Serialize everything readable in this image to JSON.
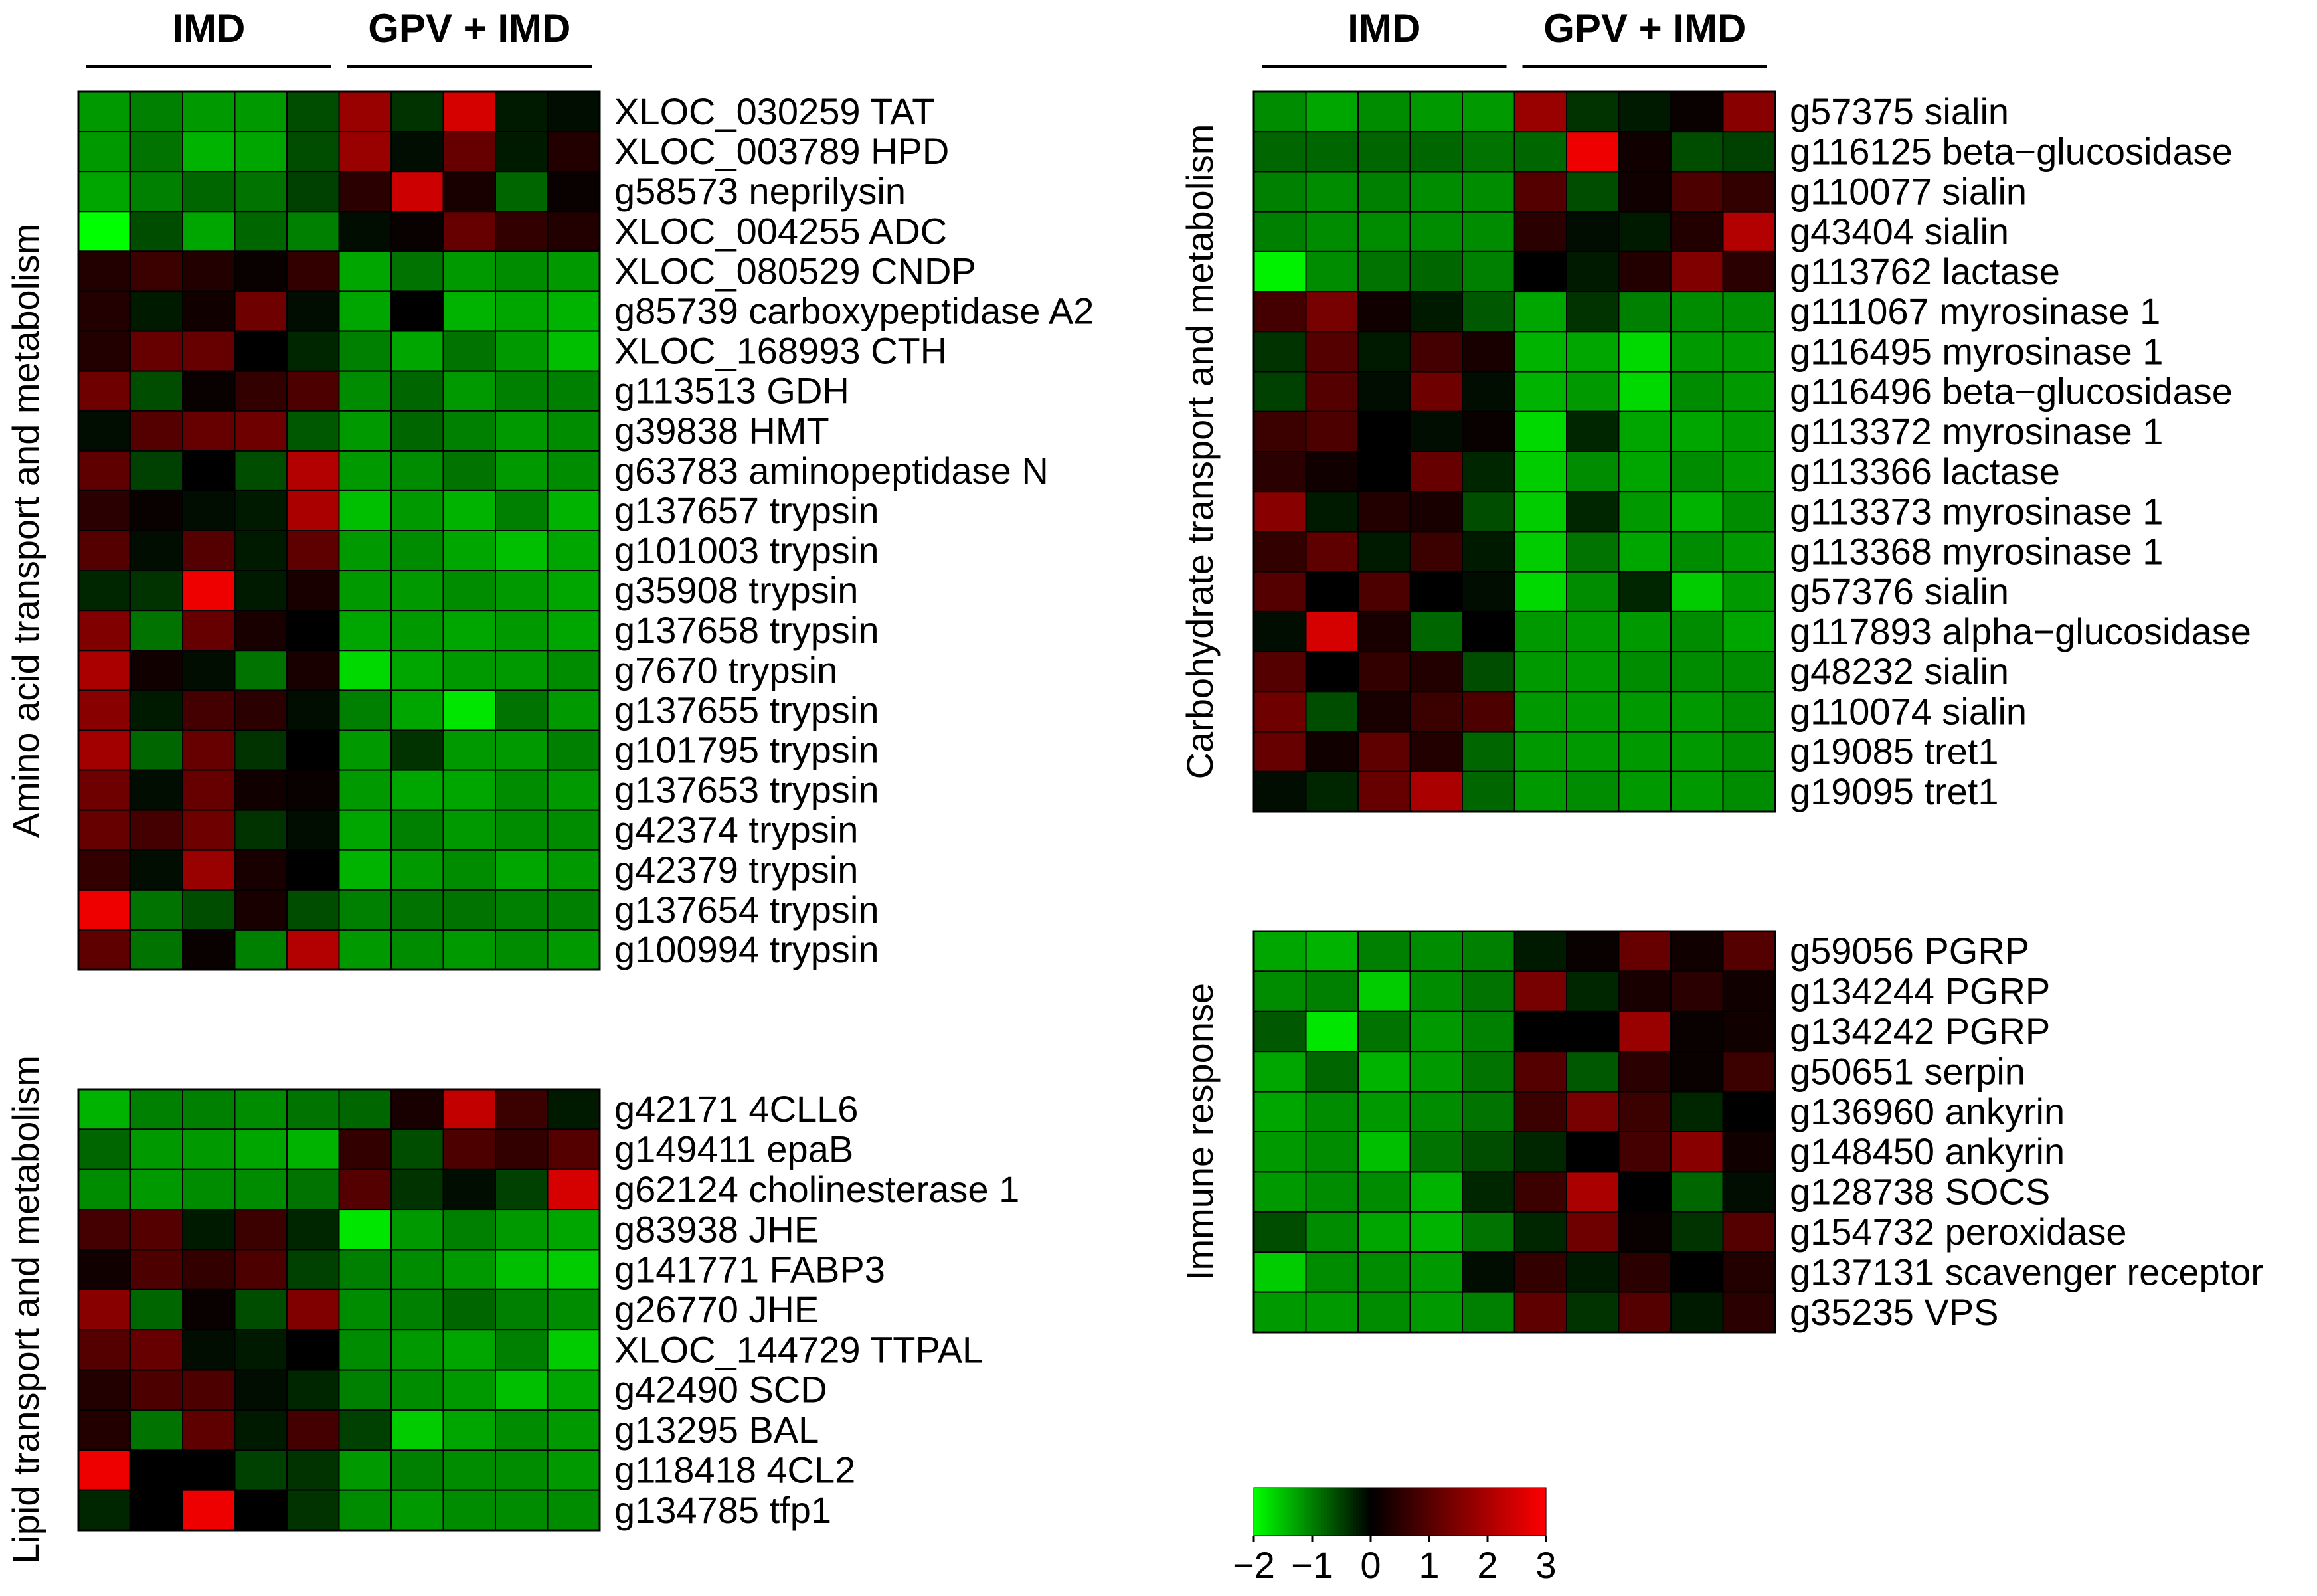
{
  "scale": {
    "min": -2,
    "max": 3
  },
  "colors": {
    "low": "#00ff00",
    "mid": "#000000",
    "high": "#ff0000"
  },
  "legend": {
    "ticks": [
      "−2",
      "−1",
      "0",
      "1",
      "2",
      "3"
    ]
  },
  "chart_data": [
    {
      "type": "heatmap",
      "title": "Amino acid transport and metabolism",
      "groups": [
        "IMD",
        "GPV + IMD"
      ],
      "rows": [
        "XLOC_030259 TAT",
        "XLOC_003789 HPD",
        "g58573 neprilysin",
        "XLOC_004255 ADC",
        "XLOC_080529 CNDP",
        "g85739 carboxypeptidase A2",
        "XLOC_168993 CTH",
        "g113513 GDH",
        "g39838 HMT",
        "g63783 aminopeptidase N",
        "g137657 trypsin",
        "g101003 trypsin",
        "g35908 trypsin",
        "g137658 trypsin",
        "g7670 trypsin",
        "g137655 trypsin",
        "g101795 trypsin",
        "g137653 trypsin",
        "g42374 trypsin",
        "g42379 trypsin",
        "g137654 trypsin",
        "g100994 trypsin"
      ],
      "values": [
        [
          -1.2,
          -1.0,
          -1.2,
          -1.2,
          -0.6,
          1.8,
          -0.4,
          2.5,
          -0.2,
          -0.1
        ],
        [
          -1.2,
          -0.9,
          -1.4,
          -1.3,
          -0.6,
          1.8,
          -0.1,
          1.2,
          -0.2,
          0.4
        ],
        [
          -1.3,
          -1.0,
          -0.8,
          -0.9,
          -0.5,
          0.5,
          2.4,
          0.3,
          -0.8,
          0.1
        ],
        [
          -2.0,
          -0.6,
          -1.3,
          -0.8,
          -1.0,
          -0.1,
          0.1,
          1.2,
          0.6,
          0.4
        ],
        [
          0.4,
          0.7,
          0.4,
          0.1,
          0.6,
          -1.3,
          -0.9,
          -1.2,
          -1.1,
          -1.2
        ],
        [
          0.4,
          -0.2,
          0.2,
          1.3,
          -0.1,
          -1.3,
          0.0,
          -1.4,
          -1.3,
          -1.4
        ],
        [
          0.4,
          1.2,
          1.2,
          0.0,
          -0.3,
          -1.0,
          -1.3,
          -0.9,
          -1.2,
          -1.5
        ],
        [
          1.3,
          -0.6,
          0.1,
          0.6,
          0.9,
          -1.1,
          -0.8,
          -1.2,
          -1.0,
          -1.0
        ],
        [
          -0.1,
          1.0,
          1.2,
          1.3,
          -0.7,
          -1.2,
          -0.8,
          -1.0,
          -1.2,
          -1.1
        ],
        [
          1.1,
          -0.5,
          0.0,
          -0.6,
          2.1,
          -1.2,
          -1.1,
          -0.9,
          -1.2,
          -1.1
        ],
        [
          0.5,
          0.1,
          -0.1,
          -0.2,
          2.0,
          -1.5,
          -1.2,
          -1.4,
          -1.0,
          -1.4
        ],
        [
          1.0,
          -0.1,
          1.0,
          -0.2,
          1.1,
          -1.2,
          -1.1,
          -1.3,
          -1.5,
          -1.3
        ],
        [
          -0.3,
          -0.4,
          2.8,
          -0.2,
          0.3,
          -1.2,
          -1.2,
          -1.1,
          -1.2,
          -1.3
        ],
        [
          1.5,
          -0.9,
          1.2,
          0.3,
          0.0,
          -1.3,
          -1.2,
          -1.3,
          -1.2,
          -1.3
        ],
        [
          2.0,
          0.2,
          -0.1,
          -0.9,
          0.3,
          -1.7,
          -1.3,
          -1.2,
          -1.2,
          -1.1
        ],
        [
          1.6,
          -0.2,
          0.8,
          0.5,
          -0.1,
          -1.0,
          -1.3,
          -1.8,
          -0.9,
          -1.2
        ],
        [
          1.9,
          -0.8,
          1.2,
          -0.4,
          0.0,
          -1.2,
          -0.4,
          -1.2,
          -1.2,
          -1.0
        ],
        [
          1.3,
          -0.1,
          1.2,
          0.2,
          0.1,
          -1.2,
          -1.3,
          -1.3,
          -1.1,
          -1.2
        ],
        [
          1.2,
          0.8,
          1.3,
          -0.4,
          -0.1,
          -1.3,
          -1.0,
          -1.2,
          -1.1,
          -1.1
        ],
        [
          0.6,
          -0.1,
          1.8,
          0.3,
          0.0,
          -1.4,
          -1.2,
          -1.1,
          -1.3,
          -1.2
        ],
        [
          2.8,
          -0.9,
          -0.6,
          0.3,
          -0.6,
          -1.0,
          -0.9,
          -0.9,
          -1.0,
          -1.0
        ],
        [
          1.1,
          -0.9,
          0.1,
          -1.0,
          2.1,
          -1.2,
          -1.1,
          -1.2,
          -1.1,
          -1.2
        ]
      ]
    },
    {
      "type": "heatmap",
      "title": "Lipid transport and metabolism",
      "groups": [
        "IMD",
        "GPV + IMD"
      ],
      "rows": [
        "g42171 4CLL6",
        "g149411 epaB",
        "g62124 cholinesterase 1",
        "g83938 JHE",
        "g141771 FABP3",
        "g26770 JHE",
        "XLOC_144729 TTPAL",
        "g42490 SCD",
        "g13295 BAL",
        "g118418 4CL2",
        "g134785 tfp1"
      ],
      "values": [
        [
          -1.4,
          -1.0,
          -1.0,
          -1.1,
          -0.9,
          -0.8,
          0.3,
          2.3,
          0.7,
          -0.2
        ],
        [
          -0.8,
          -1.2,
          -1.2,
          -1.3,
          -1.4,
          0.6,
          -0.6,
          0.9,
          0.6,
          1.0
        ],
        [
          -1.1,
          -1.2,
          -1.1,
          -1.1,
          -0.9,
          1.0,
          -0.4,
          -0.1,
          -0.5,
          2.5
        ],
        [
          0.8,
          1.0,
          -0.2,
          0.7,
          -0.3,
          -1.8,
          -1.2,
          -1.0,
          -1.2,
          -1.3
        ],
        [
          0.2,
          0.9,
          0.6,
          0.9,
          -0.5,
          -1.0,
          -1.1,
          -1.2,
          -1.5,
          -1.6
        ],
        [
          1.6,
          -0.8,
          0.1,
          -0.6,
          1.5,
          -1.1,
          -1.0,
          -0.8,
          -1.0,
          -1.1
        ],
        [
          1.0,
          1.2,
          -0.1,
          -0.2,
          0.0,
          -1.1,
          -1.2,
          -1.3,
          -1.0,
          -1.6
        ],
        [
          0.4,
          0.9,
          0.9,
          -0.1,
          -0.3,
          -1.0,
          -1.1,
          -1.2,
          -1.5,
          -1.3
        ],
        [
          0.4,
          -0.9,
          1.1,
          -0.2,
          0.8,
          -0.5,
          -1.6,
          -1.3,
          -1.1,
          -1.2
        ],
        [
          2.8,
          0.0,
          0.0,
          -0.5,
          -0.4,
          -1.2,
          -1.0,
          -1.1,
          -1.1,
          -1.2
        ],
        [
          -0.3,
          0.0,
          2.8,
          0.0,
          -0.4,
          -1.1,
          -1.2,
          -1.1,
          -1.1,
          -1.1
        ]
      ]
    },
    {
      "type": "heatmap",
      "title": "Carbohydrate transport and metabolism",
      "groups": [
        "IMD",
        "GPV + IMD"
      ],
      "rows": [
        "g57375 sialin",
        "g116125 beta−glucosidase",
        "g110077 sialin",
        "g43404 sialin",
        "g113762 lactase",
        "g111067 myrosinase 1",
        "g116495 myrosinase 1",
        "g116496 beta−glucosidase",
        "g113372 myrosinase 1",
        "g113366 lactase",
        "g113373 myrosinase 1",
        "g113368 myrosinase 1",
        "g57376 sialin",
        "g117893 alpha−glucosidase",
        "g48232 sialin",
        "g110074 sialin",
        "g19085 tret1",
        "g19095 tret1"
      ],
      "values": [
        [
          -1.1,
          -1.3,
          -1.1,
          -1.2,
          -1.2,
          1.8,
          -0.4,
          -0.2,
          0.1,
          1.6
        ],
        [
          -0.8,
          -0.8,
          -0.8,
          -0.8,
          -0.9,
          -0.8,
          2.8,
          0.2,
          -0.6,
          -0.5
        ],
        [
          -1.0,
          -1.1,
          -1.0,
          -1.1,
          -1.1,
          1.0,
          -0.6,
          0.2,
          0.9,
          0.6
        ],
        [
          -1.0,
          -1.1,
          -1.1,
          -1.1,
          -1.1,
          0.5,
          -0.1,
          -0.2,
          0.4,
          2.1
        ],
        [
          -1.9,
          -1.1,
          -0.9,
          -0.8,
          -1.0,
          0.0,
          -0.2,
          0.4,
          1.5,
          0.5
        ],
        [
          0.8,
          1.4,
          0.2,
          -0.2,
          -0.7,
          -1.3,
          -0.4,
          -1.0,
          -1.1,
          -1.1
        ],
        [
          -0.4,
          1.0,
          -0.2,
          0.8,
          0.3,
          -1.4,
          -1.3,
          -1.7,
          -1.2,
          -1.2
        ],
        [
          -0.5,
          1.0,
          -0.1,
          1.3,
          -0.1,
          -1.4,
          -1.2,
          -1.7,
          -1.1,
          -1.2
        ],
        [
          0.7,
          0.9,
          0.0,
          -0.1,
          0.1,
          -1.7,
          -0.3,
          -1.3,
          -1.3,
          -1.2
        ],
        [
          0.5,
          0.2,
          0.0,
          1.2,
          -0.3,
          -1.6,
          -1.1,
          -1.3,
          -1.1,
          -1.2
        ],
        [
          1.6,
          -0.2,
          0.4,
          0.3,
          -0.6,
          -1.6,
          -0.3,
          -1.2,
          -1.4,
          -1.1
        ],
        [
          0.6,
          1.1,
          -0.2,
          0.7,
          -0.2,
          -1.6,
          -0.9,
          -1.3,
          -1.1,
          -1.2
        ],
        [
          1.0,
          0.0,
          0.9,
          0.0,
          -0.1,
          -1.7,
          -1.1,
          -0.3,
          -1.6,
          -1.2
        ],
        [
          -0.1,
          2.5,
          0.3,
          -0.8,
          0.0,
          -1.2,
          -1.2,
          -1.2,
          -1.1,
          -1.3
        ],
        [
          1.0,
          0.0,
          0.6,
          0.4,
          -0.6,
          -1.2,
          -1.2,
          -1.1,
          -1.1,
          -1.1
        ],
        [
          1.3,
          -0.6,
          0.3,
          0.7,
          0.9,
          -1.2,
          -1.2,
          -1.2,
          -1.2,
          -1.1
        ],
        [
          1.2,
          0.2,
          1.1,
          0.4,
          -0.8,
          -1.2,
          -1.2,
          -1.2,
          -1.2,
          -1.1
        ],
        [
          -0.1,
          -0.3,
          1.2,
          2.0,
          -0.8,
          -1.2,
          -1.1,
          -1.2,
          -1.2,
          -1.1
        ]
      ]
    },
    {
      "type": "heatmap",
      "title": "Immune response",
      "groups": [
        "IMD",
        "GPV + IMD"
      ],
      "rows": [
        "g59056 PGRP",
        "g134244 PGRP",
        "g134242 PGRP",
        "g50651 serpin",
        "g136960 ankyrin",
        "g148450 ankyrin",
        "g128738 SOCS",
        "g154732 peroxidase",
        "g137131 scavenger receptor",
        "g35235 VPS"
      ],
      "values": [
        [
          -1.3,
          -1.4,
          -1.0,
          -1.1,
          -1.0,
          -0.2,
          0.1,
          1.2,
          0.2,
          1.0
        ],
        [
          -1.1,
          -1.0,
          -1.6,
          -1.1,
          -0.9,
          1.4,
          -0.3,
          0.3,
          0.5,
          0.2
        ],
        [
          -0.7,
          -1.8,
          -0.9,
          -1.2,
          -1.0,
          0.0,
          0.0,
          1.8,
          0.1,
          0.2
        ],
        [
          -1.3,
          -0.8,
          -1.4,
          -1.2,
          -0.9,
          1.0,
          -0.7,
          0.5,
          0.1,
          0.7
        ],
        [
          -1.3,
          -1.1,
          -1.2,
          -1.1,
          -0.9,
          0.7,
          1.4,
          0.7,
          -0.3,
          0.0
        ],
        [
          -1.2,
          -1.1,
          -1.5,
          -0.9,
          -0.6,
          -0.3,
          0.0,
          0.8,
          1.6,
          0.2
        ],
        [
          -1.2,
          -1.1,
          -1.1,
          -1.4,
          -0.3,
          0.7,
          2.0,
          0.0,
          -0.8,
          -0.1
        ],
        [
          -0.6,
          -1.1,
          -1.3,
          -1.4,
          -0.9,
          -0.3,
          1.3,
          0.1,
          -0.4,
          1.0
        ],
        [
          -1.6,
          -1.1,
          -1.1,
          -1.2,
          -0.1,
          0.6,
          -0.2,
          0.5,
          0.0,
          0.4
        ],
        [
          -1.2,
          -1.2,
          -1.1,
          -1.2,
          -1.0,
          1.1,
          -0.4,
          1.0,
          -0.2,
          0.5
        ]
      ]
    }
  ]
}
